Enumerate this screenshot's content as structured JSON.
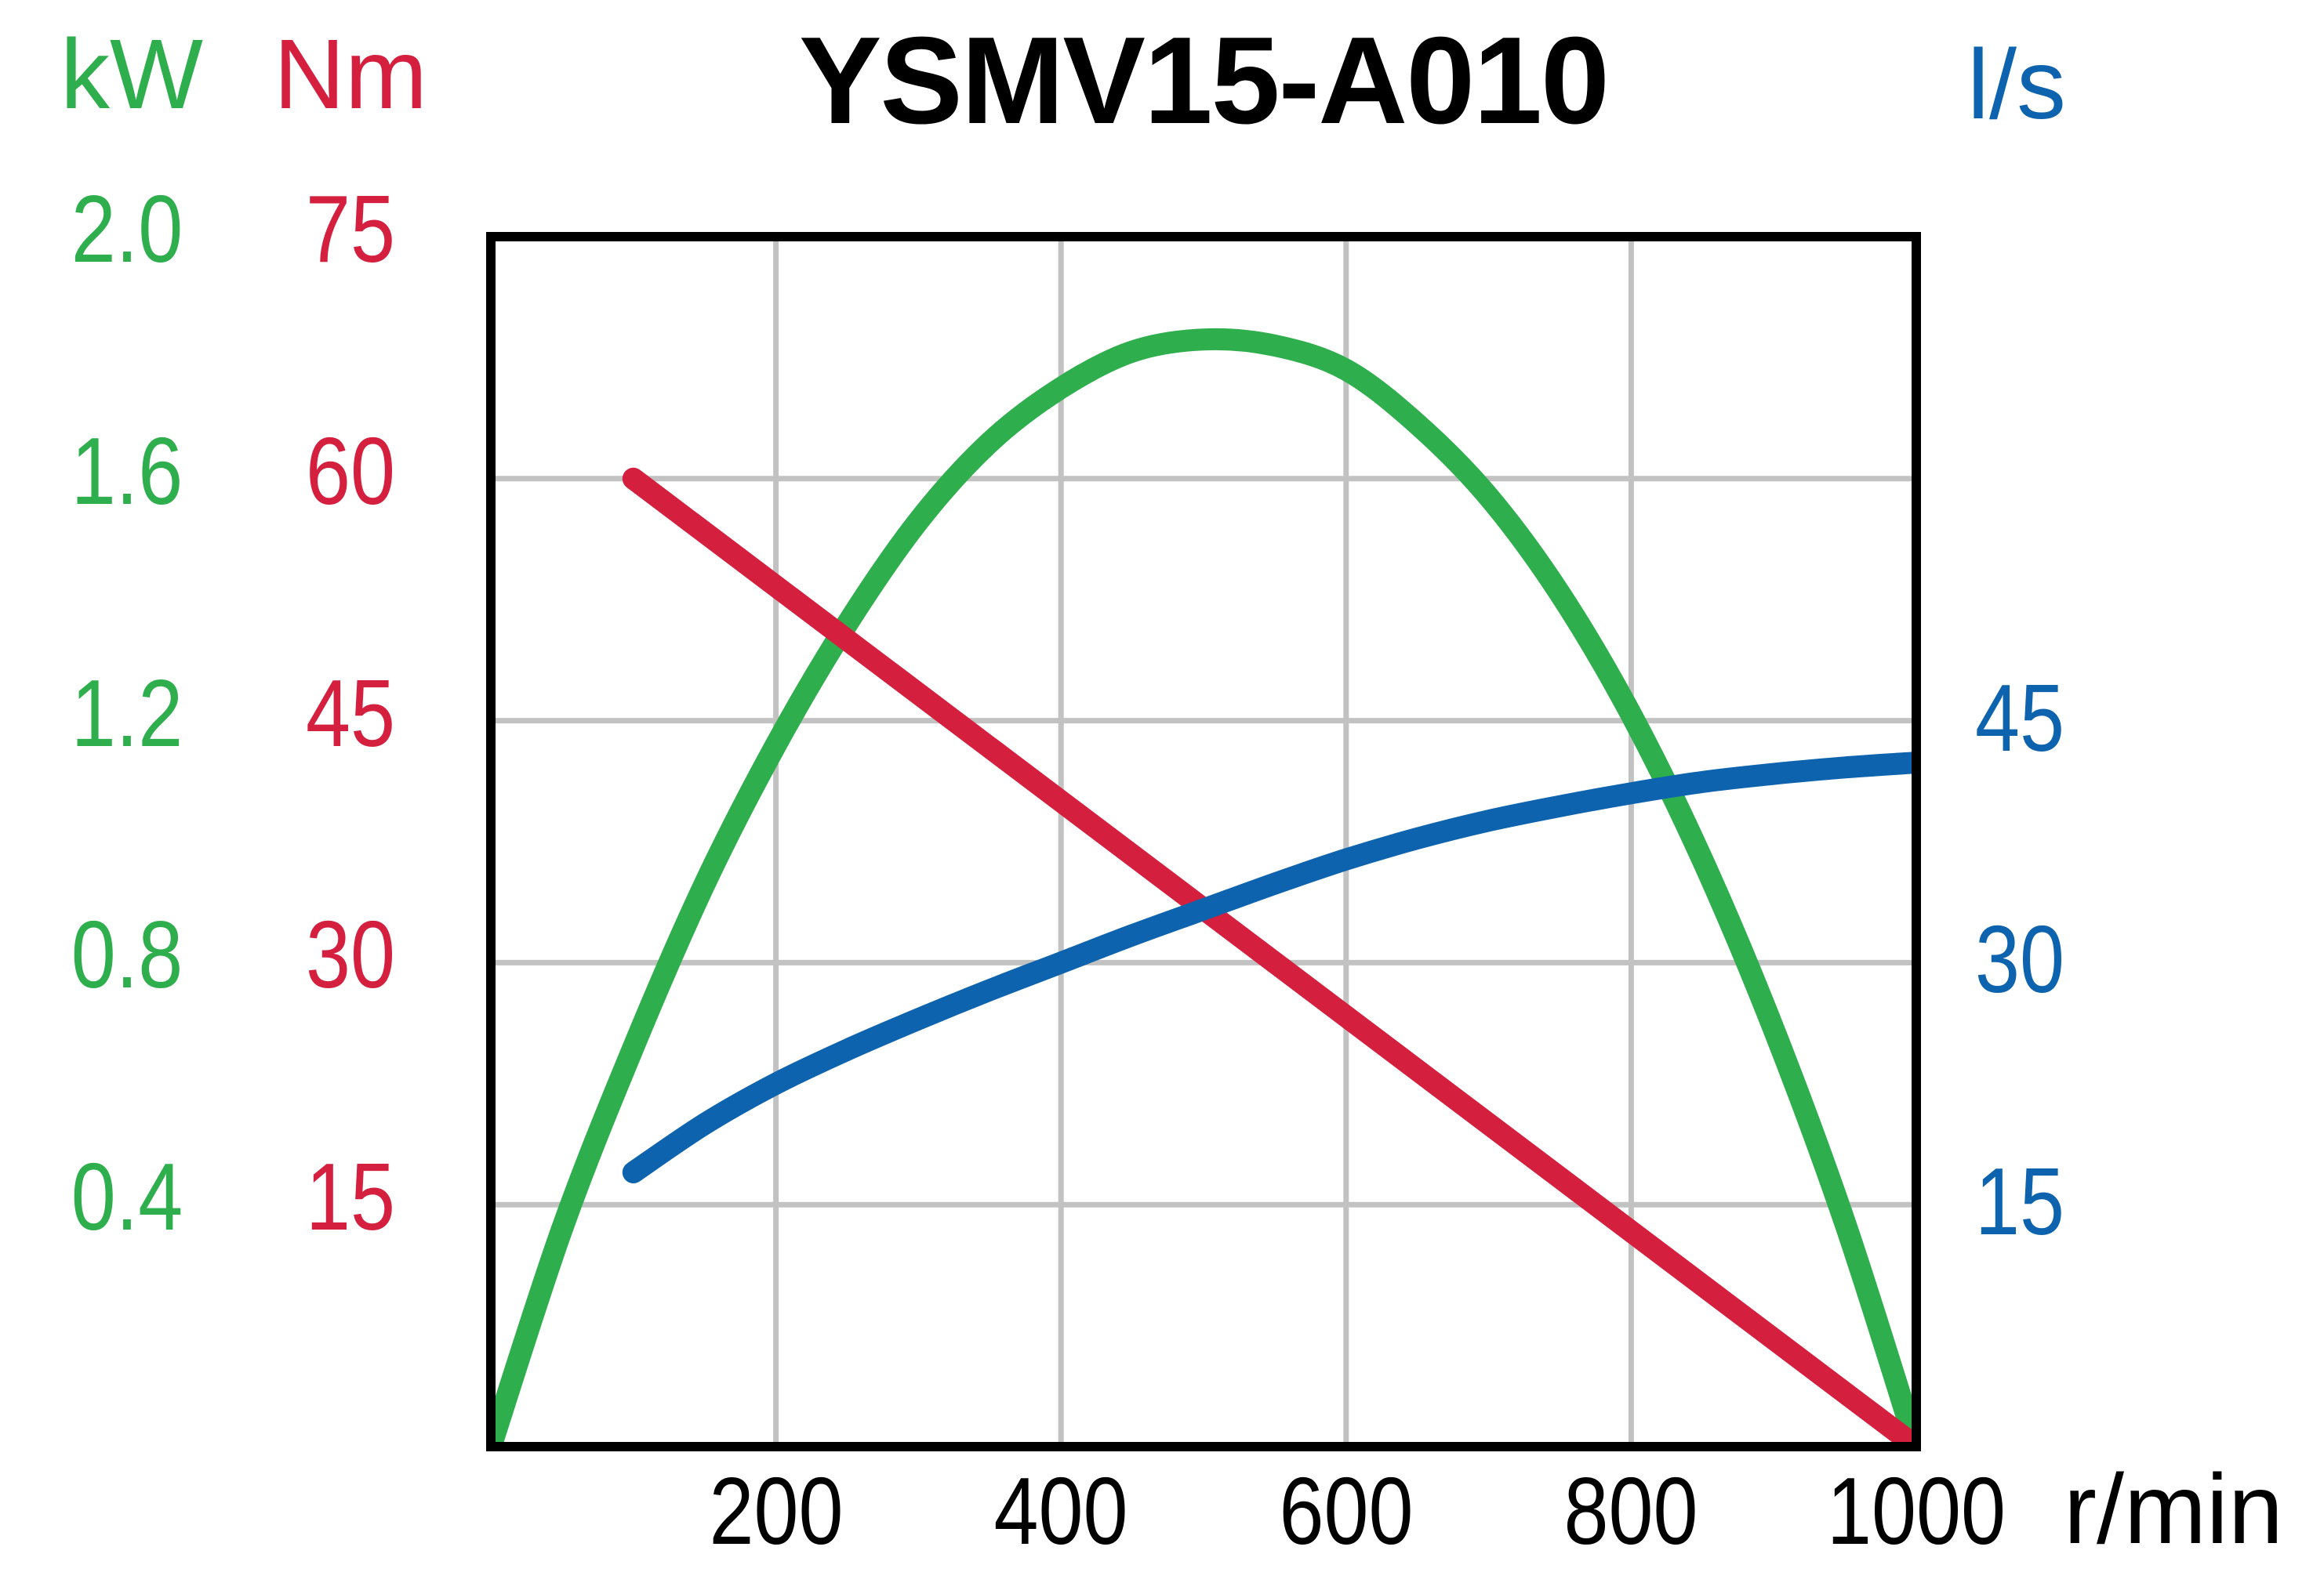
{
  "title": "YSMV15-A010",
  "axes": {
    "power": {
      "unit": "kW",
      "color": "#2fae4d",
      "tick_labels": [
        "2.0",
        "1.6",
        "1.2",
        "0.8",
        "0.4"
      ],
      "tick_values": [
        2.0,
        1.6,
        1.2,
        0.8,
        0.4
      ],
      "max": 2.0
    },
    "torque": {
      "unit": "Nm",
      "color": "#d41f3e",
      "tick_labels": [
        "75",
        "60",
        "45",
        "30",
        "15"
      ],
      "tick_values": [
        75,
        60,
        45,
        30,
        15
      ],
      "max": 75
    },
    "flow": {
      "unit": "l/s",
      "color": "#0d63ad",
      "tick_labels": [
        "45",
        "30",
        "15"
      ],
      "tick_values": [
        45,
        30,
        15
      ],
      "max": 75
    },
    "speed": {
      "unit": "r/min",
      "color": "#000000",
      "tick_labels": [
        "200",
        "400",
        "600",
        "800",
        "1000"
      ],
      "tick_values": [
        200,
        400,
        600,
        800,
        1000
      ],
      "max": 1000
    }
  },
  "chart_data": {
    "type": "line",
    "title": "YSMV15-A010",
    "xlabel": "r/min",
    "x_range": [
      0,
      1000
    ],
    "x_gridlines": [
      200,
      400,
      600,
      800
    ],
    "power_gridlines": [
      1.6,
      1.2,
      0.8,
      0.4
    ],
    "grid": true,
    "grid_color": "#c2c2c2",
    "border_color": "#000000",
    "legend": "none",
    "series": [
      {
        "name": "power",
        "unit": "kW",
        "color": "#2fae4d",
        "y_max": 2.0,
        "points": [
          [
            0,
            0
          ],
          [
            50,
            0.36
          ],
          [
            100,
            0.66
          ],
          [
            150,
            0.93
          ],
          [
            200,
            1.16
          ],
          [
            250,
            1.36
          ],
          [
            300,
            1.53
          ],
          [
            350,
            1.66
          ],
          [
            400,
            1.75
          ],
          [
            450,
            1.81
          ],
          [
            500,
            1.83
          ],
          [
            550,
            1.82
          ],
          [
            600,
            1.78
          ],
          [
            650,
            1.69
          ],
          [
            700,
            1.57
          ],
          [
            750,
            1.41
          ],
          [
            800,
            1.21
          ],
          [
            850,
            0.97
          ],
          [
            900,
            0.69
          ],
          [
            950,
            0.37
          ],
          [
            1000,
            0
          ]
        ]
      },
      {
        "name": "torque",
        "unit": "Nm",
        "color": "#d41f3e",
        "y_max": 75,
        "points": [
          [
            100,
            60
          ],
          [
            1000,
            0
          ]
        ]
      },
      {
        "name": "flow",
        "unit": "l/s",
        "color": "#0d63ad",
        "y_max": 75,
        "points": [
          [
            100,
            17
          ],
          [
            150,
            20
          ],
          [
            200,
            22.5
          ],
          [
            250,
            24.6
          ],
          [
            300,
            26.5
          ],
          [
            350,
            28.3
          ],
          [
            400,
            30
          ],
          [
            450,
            31.7
          ],
          [
            500,
            33.3
          ],
          [
            550,
            34.9
          ],
          [
            600,
            36.4
          ],
          [
            650,
            37.7
          ],
          [
            700,
            38.8
          ],
          [
            750,
            39.7
          ],
          [
            800,
            40.5
          ],
          [
            850,
            41.2
          ],
          [
            900,
            41.7
          ],
          [
            950,
            42.1
          ],
          [
            1000,
            42.4
          ]
        ]
      }
    ]
  }
}
